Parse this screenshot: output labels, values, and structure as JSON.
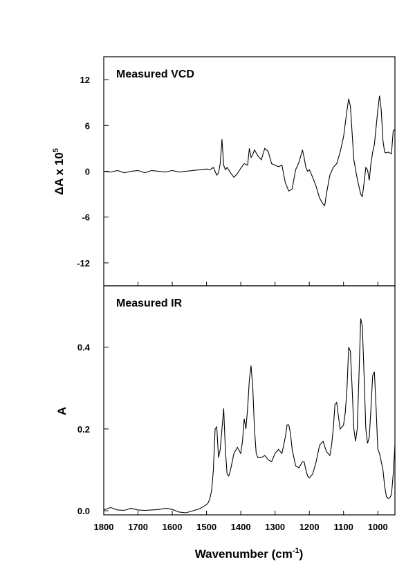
{
  "chart_data": [
    {
      "type": "line",
      "title": "Measured VCD",
      "xlabel": "",
      "ylabel": "ΔA x 10^5",
      "ylabel_parts": {
        "main": "ΔA x 10",
        "exp": "5"
      },
      "xlim": [
        1800,
        950
      ],
      "x_reversed": true,
      "ylim": [
        -15,
        15
      ],
      "yticks": [
        12,
        6,
        0,
        -6,
        -12
      ],
      "ytick_labels": [
        "12",
        "6",
        "0",
        "-6",
        "-12"
      ],
      "grid": false,
      "series": [
        {
          "x": [
            1800,
            1780,
            1760,
            1740,
            1720,
            1700,
            1680,
            1660,
            1640,
            1620,
            1600,
            1580,
            1560,
            1540,
            1520,
            1500,
            1490,
            1480,
            1470,
            1465,
            1460,
            1455,
            1450,
            1445,
            1440,
            1430,
            1420,
            1410,
            1400,
            1390,
            1380,
            1375,
            1370,
            1365,
            1360,
            1350,
            1340,
            1330,
            1320,
            1310,
            1300,
            1290,
            1280,
            1270,
            1260,
            1250,
            1240,
            1230,
            1220,
            1215,
            1210,
            1205,
            1200,
            1190,
            1180,
            1170,
            1160,
            1155,
            1150,
            1140,
            1130,
            1120,
            1110,
            1100,
            1090,
            1085,
            1080,
            1075,
            1070,
            1060,
            1050,
            1045,
            1040,
            1035,
            1030,
            1025,
            1020,
            1015,
            1010,
            1000,
            995,
            990,
            985,
            980,
            975,
            970,
            960,
            955,
            950
          ],
          "y": [
            0,
            -0.1,
            0.1,
            -0.2,
            0,
            0.1,
            -0.2,
            0.1,
            0,
            -0.1,
            0.1,
            -0.1,
            0,
            0.1,
            0.2,
            0.3,
            0.2,
            0.5,
            -0.5,
            -0.2,
            1.0,
            4.2,
            0.8,
            0.2,
            0.5,
            -0.2,
            -0.8,
            -0.3,
            0.4,
            1.0,
            0.8,
            3.0,
            1.8,
            2.2,
            2.8,
            2.0,
            1.5,
            3.0,
            2.6,
            1.0,
            0.8,
            0.6,
            0.8,
            -1.5,
            -2.6,
            -2.3,
            0.2,
            1.2,
            2.8,
            1.8,
            0.5,
            0.0,
            0.2,
            -0.8,
            -2.0,
            -3.5,
            -4.3,
            -4.5,
            -3.0,
            -0.5,
            0.5,
            1.0,
            2.5,
            4.5,
            8.0,
            9.5,
            8.5,
            5.0,
            1.5,
            -1.0,
            -3.0,
            -3.3,
            -1.5,
            0.5,
            0.2,
            -1.2,
            1.0,
            2.5,
            3.5,
            8.0,
            9.9,
            8.0,
            4.0,
            2.5,
            2.4,
            2.5,
            2.3,
            5.3,
            5.5
          ]
        }
      ]
    },
    {
      "type": "line",
      "title": "Measured IR",
      "xlabel": "Wavenumber (cm^-1)",
      "xlabel_parts": {
        "main": "Wavenumber (cm",
        "exp": "-1",
        "tail": ")"
      },
      "ylabel": "A",
      "xlim": [
        1800,
        950
      ],
      "x_reversed": true,
      "xticks": [
        1800,
        1700,
        1600,
        1500,
        1400,
        1300,
        1200,
        1100,
        1000
      ],
      "xtick_labels": [
        "1800",
        "1700",
        "1600",
        "1500",
        "1400",
        "1300",
        "1200",
        "1100",
        "1000"
      ],
      "ylim": [
        -0.01,
        0.55
      ],
      "yticks": [
        0.0,
        0.2,
        0.4
      ],
      "ytick_labels": [
        "0.0",
        "0.2",
        "0.4"
      ],
      "grid": false,
      "series": [
        {
          "x": [
            1800,
            1780,
            1760,
            1740,
            1720,
            1700,
            1680,
            1660,
            1640,
            1620,
            1610,
            1600,
            1580,
            1560,
            1540,
            1520,
            1510,
            1500,
            1495,
            1490,
            1485,
            1480,
            1475,
            1470,
            1465,
            1460,
            1455,
            1450,
            1445,
            1440,
            1435,
            1430,
            1420,
            1410,
            1400,
            1395,
            1390,
            1385,
            1380,
            1375,
            1370,
            1365,
            1360,
            1355,
            1350,
            1340,
            1330,
            1320,
            1310,
            1300,
            1290,
            1280,
            1270,
            1265,
            1260,
            1255,
            1250,
            1240,
            1230,
            1220,
            1215,
            1210,
            1205,
            1200,
            1190,
            1180,
            1170,
            1160,
            1150,
            1140,
            1135,
            1130,
            1125,
            1120,
            1115,
            1110,
            1100,
            1095,
            1090,
            1085,
            1080,
            1075,
            1070,
            1065,
            1060,
            1055,
            1050,
            1045,
            1040,
            1035,
            1030,
            1025,
            1020,
            1015,
            1010,
            1005,
            1000,
            995,
            990,
            985,
            980,
            975,
            970,
            965,
            960,
            955,
            950
          ],
          "y": [
            0.002,
            0.008,
            0.002,
            0.001,
            0.006,
            0.002,
            0.001,
            0.002,
            0.003,
            0.006,
            0.005,
            0.003,
            -0.003,
            -0.005,
            0.0,
            0.005,
            0.01,
            0.015,
            0.02,
            0.03,
            0.05,
            0.1,
            0.2,
            0.205,
            0.13,
            0.15,
            0.2,
            0.25,
            0.15,
            0.09,
            0.085,
            0.1,
            0.14,
            0.155,
            0.14,
            0.17,
            0.225,
            0.2,
            0.25,
            0.32,
            0.355,
            0.3,
            0.2,
            0.14,
            0.13,
            0.13,
            0.135,
            0.125,
            0.12,
            0.14,
            0.15,
            0.14,
            0.18,
            0.21,
            0.21,
            0.19,
            0.15,
            0.11,
            0.105,
            0.12,
            0.12,
            0.1,
            0.085,
            0.08,
            0.09,
            0.12,
            0.16,
            0.17,
            0.145,
            0.135,
            0.16,
            0.2,
            0.26,
            0.265,
            0.23,
            0.2,
            0.21,
            0.24,
            0.3,
            0.4,
            0.39,
            0.3,
            0.2,
            0.17,
            0.2,
            0.33,
            0.47,
            0.45,
            0.33,
            0.2,
            0.165,
            0.18,
            0.25,
            0.33,
            0.34,
            0.25,
            0.15,
            0.14,
            0.12,
            0.1,
            0.06,
            0.035,
            0.03,
            0.032,
            0.04,
            0.09,
            0.16
          ]
        }
      ]
    }
  ]
}
